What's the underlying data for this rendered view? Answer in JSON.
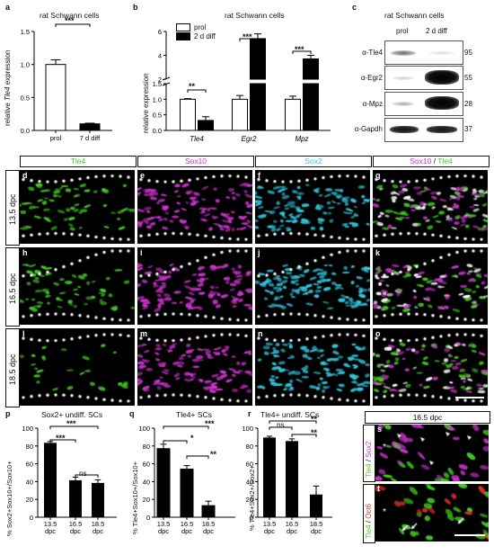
{
  "panel_a": {
    "letter": "a",
    "title": "rat Schwann cells",
    "ylabel_pre": "relative ",
    "ylabel_gene": "Tle4",
    "ylabel_post": " expression",
    "sig": "***"
  },
  "panel_b": {
    "letter": "b",
    "title": "rat Schwann cells",
    "ylabel": "relative expression",
    "legend": [
      "prol",
      "2 d diff"
    ],
    "sig": [
      "**",
      "***",
      "***"
    ]
  },
  "panel_c": {
    "letter": "c",
    "title": "rat Schwann cells",
    "cols": [
      "prol",
      "2 d diff"
    ],
    "rows": [
      {
        "label": "α-Tle4",
        "kda": "95"
      },
      {
        "label": "α-Egr2",
        "kda": "55"
      },
      {
        "label": "α-Mpz",
        "kda": "28"
      },
      {
        "label": "α-Gapdh",
        "kda": "37"
      }
    ]
  },
  "micro": {
    "channels": {
      "tle4": "Tle4",
      "sox10": "Sox10",
      "sox2": "Sox2",
      "merge_a": "Sox10",
      "merge_sep": " / ",
      "merge_b": "Tle4"
    },
    "rows": [
      "13.5 dpc",
      "16.5 dpc",
      "18.5 dpc"
    ],
    "letters": [
      "d",
      "e",
      "f",
      "g",
      "h",
      "i",
      "j",
      "k",
      "l",
      "m",
      "n",
      "o"
    ]
  },
  "panel_p": {
    "letter": "p",
    "title": "Sox2+ undiff. SCs",
    "ylabel": "% Sox2+Sox10+/Sox10+",
    "sig": [
      "***",
      "***",
      "ns"
    ]
  },
  "panel_q": {
    "letter": "q",
    "title": "Tle4+ SCs",
    "ylabel": "% Tle4+Sox10+/Sox10+",
    "sig": [
      "***",
      "*",
      "**"
    ]
  },
  "panel_r": {
    "letter": "r",
    "title": "Tle4+ undiff. SCs",
    "ylabel": "% Tle4+Sox2+/Sox2+",
    "sig": [
      "**",
      "ns",
      "**"
    ]
  },
  "panel_st": {
    "header": "16.5 dpc",
    "s_letter": "s",
    "t_letter": "t",
    "s_label_a": "Tle4",
    "s_label_sep": " / ",
    "s_label_b": "Sox2",
    "t_label_a": "Tle4",
    "t_label_sep": " / ",
    "t_label_b": "Oct6",
    "star": "*"
  },
  "colors": {
    "tle4": "#44cc22",
    "sox10": "#cc33cc",
    "sox2": "#33c8e0",
    "oct6": "#e03030"
  },
  "chart_data": [
    {
      "type": "bar",
      "panel": "a",
      "categories": [
        "prol",
        "7 d diff"
      ],
      "values": [
        1.0,
        0.1
      ],
      "errors": [
        0.07,
        0.01
      ],
      "ylabel": "relative Tle4 expression",
      "ylim": [
        0,
        1.5
      ],
      "yticks": [
        "0.0",
        "0.5",
        "1.0",
        "1.5"
      ],
      "fills": [
        "white",
        "black"
      ]
    },
    {
      "type": "bar",
      "panel": "b",
      "categories": [
        "Tle4",
        "Egr2",
        "Mpz"
      ],
      "series": [
        {
          "name": "prol",
          "values": [
            1.0,
            1.0,
            1.0
          ],
          "errors": [
            0.02,
            0.12,
            0.1
          ]
        },
        {
          "name": "2 d diff",
          "values": [
            0.32,
            5.4,
            3.7
          ],
          "errors": [
            0.12,
            0.4,
            0.3
          ]
        }
      ],
      "ylabel": "relative expression",
      "axis_break": [
        1.5,
        2
      ],
      "yticks_low": [
        "0.0",
        "0.5",
        "1.0",
        "1.5"
      ],
      "yticks_high": [
        "2",
        "4",
        "6"
      ]
    },
    {
      "type": "bar",
      "panel": "p",
      "categories": [
        "13.5 dpc",
        "16.5 dpc",
        "18.5 dpc"
      ],
      "values": [
        83,
        41,
        38
      ],
      "errors": [
        2,
        4,
        4
      ],
      "ylabel": "% Sox2+Sox10+/Sox10+",
      "ylim": [
        0,
        100
      ],
      "yticks": [
        "0",
        "20",
        "40",
        "60",
        "80",
        "100"
      ]
    },
    {
      "type": "bar",
      "panel": "q",
      "categories": [
        "13.5 dpc",
        "16.5 dpc",
        "18.5 dpc"
      ],
      "values": [
        77,
        54,
        13
      ],
      "errors": [
        5,
        4,
        5
      ],
      "ylabel": "% Tle4+Sox10+/Sox10+",
      "ylim": [
        0,
        100
      ],
      "yticks": [
        "0",
        "20",
        "40",
        "60",
        "80",
        "100"
      ]
    },
    {
      "type": "bar",
      "panel": "r",
      "categories": [
        "13.5 dpc",
        "16.5 dpc",
        "18.5 dpc"
      ],
      "values": [
        89,
        85,
        25
      ],
      "errors": [
        2,
        3,
        10
      ],
      "ylabel": "% Tle4+Sox2+/Sox2+",
      "ylim": [
        0,
        100
      ],
      "yticks": [
        "0",
        "20",
        "40",
        "60",
        "80",
        "100"
      ]
    }
  ]
}
